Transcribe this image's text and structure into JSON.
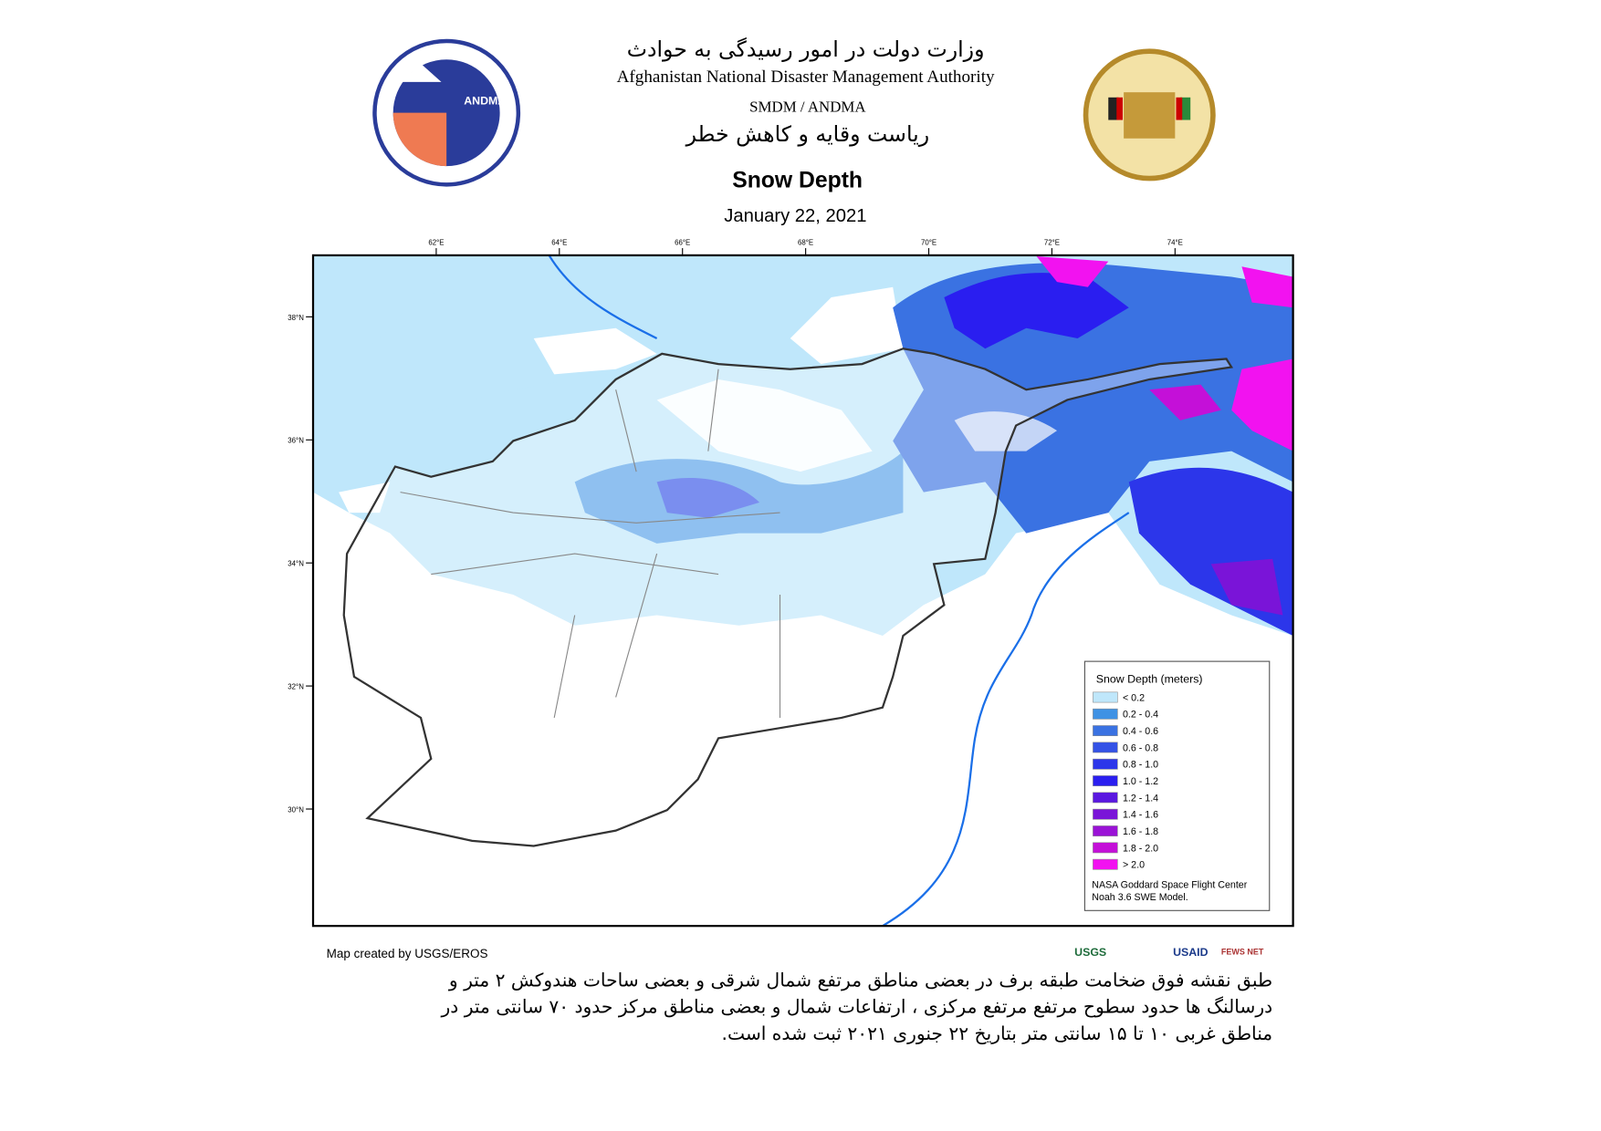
{
  "header": {
    "title_fa": "وزارت دولت در امور رسیدگی به حوادث",
    "title_en": "Afghanistan National Disaster Management Authority",
    "unit_en": "SMDM / ANDMA",
    "unit_fa": "ریاست وقایه و کاهش خطر",
    "logo_text": "ANDMA"
  },
  "map": {
    "title": "Snow Depth",
    "date": "January 22, 2021",
    "lon_ticks": [
      "62°E",
      "64°E",
      "66°E",
      "68°E",
      "70°E",
      "72°E",
      "74°E"
    ],
    "lat_ticks": [
      "38°N",
      "36°N",
      "34°N",
      "32°N",
      "30°N"
    ],
    "legend": {
      "title": "Snow Depth (meters)",
      "items": [
        {
          "label": "< 0.2",
          "color": "#bfe7fb"
        },
        {
          "label": "0.2 - 0.4",
          "color": "#3f92e4"
        },
        {
          "label": "0.4 - 0.6",
          "color": "#3a72e2"
        },
        {
          "label": "0.6 - 0.8",
          "color": "#3452e6"
        },
        {
          "label": "0.8 - 1.0",
          "color": "#2c36ea"
        },
        {
          "label": "1.0 - 1.2",
          "color": "#2a1ef0"
        },
        {
          "label": "1.2 - 1.4",
          "color": "#5a18e0"
        },
        {
          "label": "1.4 - 1.6",
          "color": "#7a14d8"
        },
        {
          "label": "1.6 - 1.8",
          "color": "#9a12d6"
        },
        {
          "label": "1.8 - 2.0",
          "color": "#c410d8"
        },
        {
          "label": "> 2.0",
          "color": "#f212f0"
        }
      ],
      "source": [
        "NASA Goddard Space Flight Center",
        "Noah 3.6 SWE Model."
      ]
    },
    "credit": "Map created by USGS/EROS",
    "partners": [
      "USGS",
      "USAID",
      "FEWS NET"
    ]
  },
  "footer": {
    "lines": [
      "طبق نقشه فوق ضخامت طبقه  برف  در بعضی مناطق مرتفع  شمال شرقی  و بعضی ساحات هندوکش ۲ متر و",
      "درسالنگ ها حدود سطوح مرتفع مرتفع مرکزی ، ارتفاعات شمال و بعضی مناطق مرکز حدود ۷۰ سانتی متر در",
      "مناطق غربی ۱۰ تا ۱۵ سانتی متر بتاریخ  ۲۲ جنوری ۲۰۲۱ ثبت شده است."
    ]
  }
}
